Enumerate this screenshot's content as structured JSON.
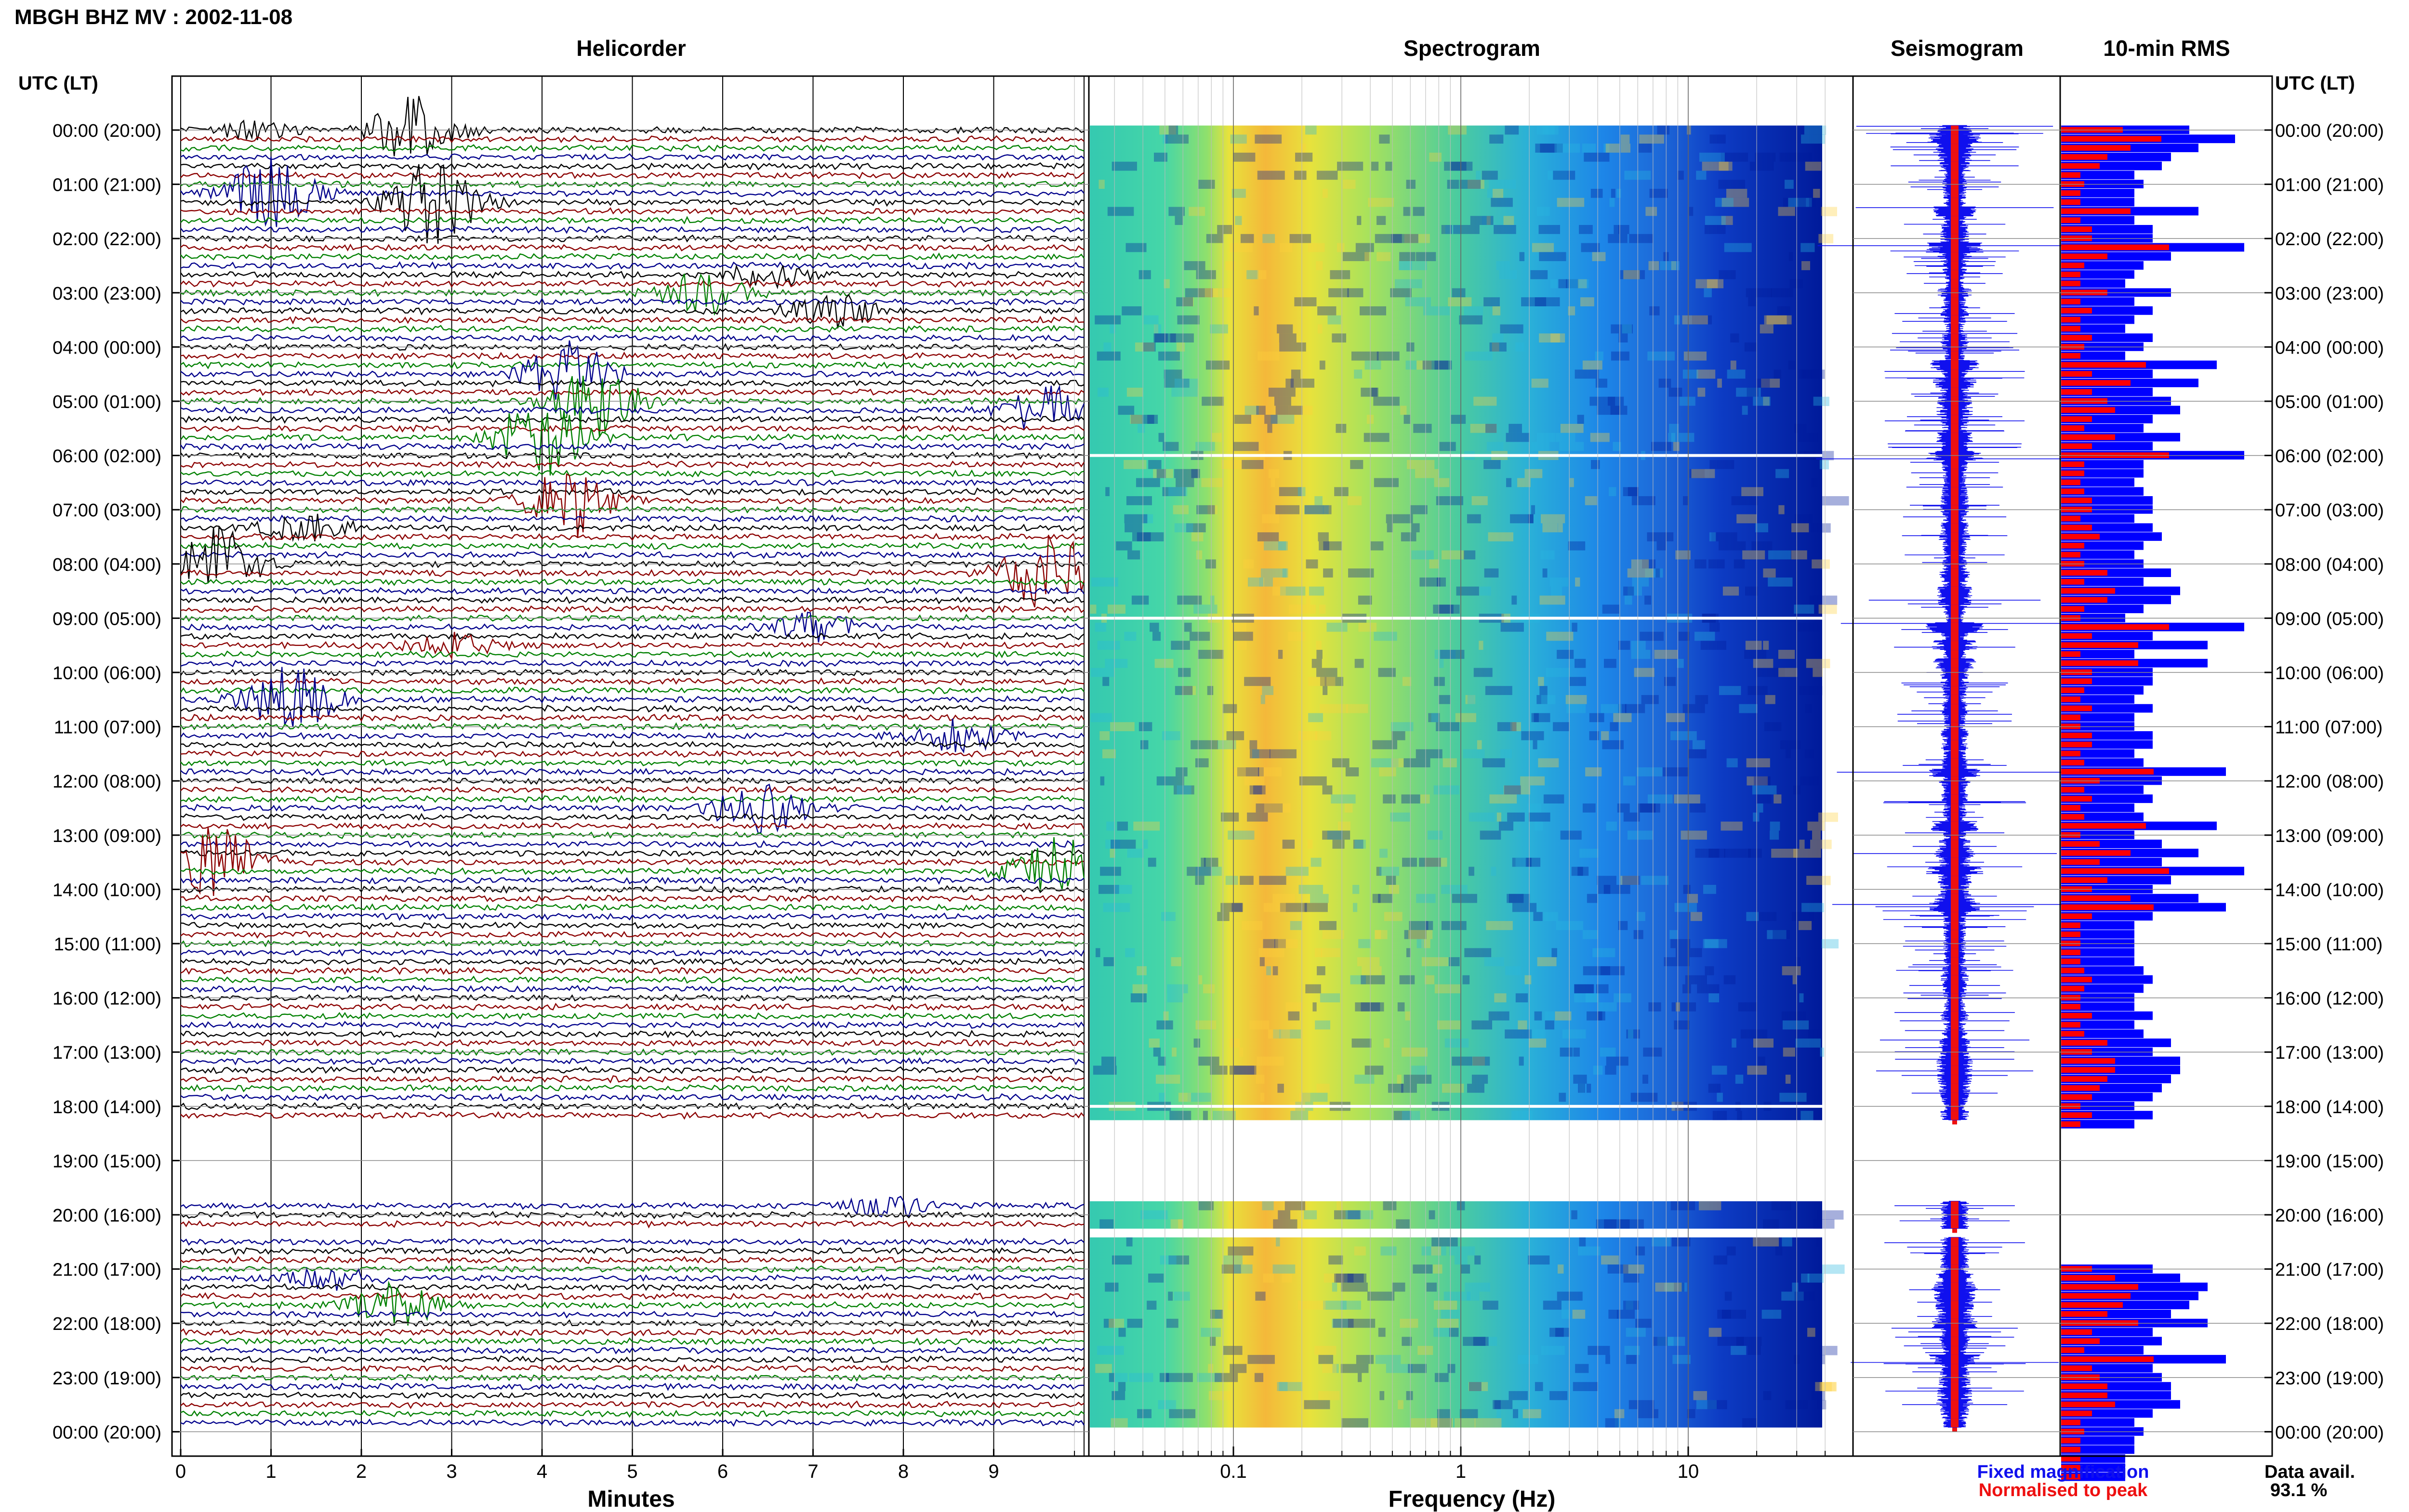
{
  "title": "MBGH BHZ MV : 2002-11-08",
  "panels": {
    "helicorder": "Helicorder",
    "spectrogram": "Spectrogram",
    "seismogram": "Seismogram",
    "rms": "10-min RMS"
  },
  "axis_header": "UTC (LT)",
  "time_labels": [
    "00:00 (20:00)",
    "01:00 (21:00)",
    "02:00 (22:00)",
    "03:00 (23:00)",
    "04:00 (00:00)",
    "05:00 (01:00)",
    "06:00 (02:00)",
    "07:00 (03:00)",
    "08:00 (04:00)",
    "09:00 (05:00)",
    "10:00 (06:00)",
    "11:00 (07:00)",
    "12:00 (08:00)",
    "13:00 (09:00)",
    "14:00 (10:00)",
    "15:00 (11:00)",
    "16:00 (12:00)",
    "17:00 (13:00)",
    "18:00 (14:00)",
    "19:00 (15:00)",
    "20:00 (16:00)",
    "21:00 (17:00)",
    "22:00 (18:00)",
    "23:00 (19:00)",
    "00:00 (20:00)"
  ],
  "xaxes": {
    "minutes_label": "Minutes",
    "minutes_ticks": [
      "0",
      "1",
      "2",
      "3",
      "4",
      "5",
      "6",
      "7",
      "8",
      "9"
    ],
    "frequency_label": "Frequency (Hz)",
    "frequency_ticks": [
      "0.1",
      "1",
      "10"
    ]
  },
  "legend": {
    "fixed": "Fixed magnification",
    "normalised": "Normalised to peak",
    "fixed_color": "#1010ee",
    "normalised_color": "#ee1010"
  },
  "availability": {
    "label": "Data avail.",
    "value": "93.1 %"
  },
  "colors": {
    "trace_cycle": [
      "#000000",
      "#8b0000",
      "#008000",
      "#00008b"
    ],
    "rms_blue": "#0000ff",
    "rms_red": "#ff0000"
  },
  "chart_data": {
    "type": "heatmap",
    "date": "2002-11-08",
    "station": "MBGH BHZ MV",
    "helicorder_minutes_per_line": 10,
    "spectrogram_frequency_range_hz": [
      0.02,
      40
    ],
    "spectrogram_peak_band_hz": [
      0.15,
      0.3
    ],
    "data_gap_utc": [
      "18:20",
      "19:40"
    ],
    "data_gap2_utc": [
      "20:20",
      "20:30"
    ],
    "spectrogram_white_rows_utc": [
      "06:00",
      "09:00",
      "18:00"
    ],
    "events_utc_minute": [
      {
        "hour": 0,
        "row": 0,
        "minute": 0.8,
        "amp": 0.6
      },
      {
        "hour": 0,
        "row": 0,
        "minute": 2.6,
        "amp": 2.4
      },
      {
        "hour": 1,
        "row": 1,
        "minute": 1.0,
        "amp": 2.5
      },
      {
        "hour": 1,
        "row": 2,
        "minute": 2.8,
        "amp": 3.0
      },
      {
        "hour": 2,
        "row": 4,
        "minute": 6.5,
        "amp": 0.8
      },
      {
        "hour": 3,
        "row": 0,
        "minute": 5.8,
        "amp": 1.6
      },
      {
        "hour": 3,
        "row": 2,
        "minute": 7.2,
        "amp": 1.2
      },
      {
        "hour": 4,
        "row": 3,
        "minute": 4.3,
        "amp": 2.2
      },
      {
        "hour": 5,
        "row": 0,
        "minute": 4.6,
        "amp": 2.5
      },
      {
        "hour": 5,
        "row": 1,
        "minute": 9.6,
        "amp": 1.6
      },
      {
        "hour": 5,
        "row": 4,
        "minute": 4.0,
        "amp": 2.8
      },
      {
        "hour": 6,
        "row": 5,
        "minute": 4.3,
        "amp": 2.6
      },
      {
        "hour": 7,
        "row": 2,
        "minute": 1.4,
        "amp": 0.9
      },
      {
        "hour": 8,
        "row": 0,
        "minute": 0.4,
        "amp": 2.5
      },
      {
        "hour": 8,
        "row": 1,
        "minute": 9.6,
        "amp": 2.8
      },
      {
        "hour": 9,
        "row": 1,
        "minute": 7.0,
        "amp": 1.0
      },
      {
        "hour": 9,
        "row": 3,
        "minute": 3.0,
        "amp": 0.8
      },
      {
        "hour": 10,
        "row": 3,
        "minute": 1.2,
        "amp": 2.4
      },
      {
        "hour": 11,
        "row": 1,
        "minute": 8.6,
        "amp": 1.2
      },
      {
        "hour": 12,
        "row": 3,
        "minute": 6.4,
        "amp": 2.0
      },
      {
        "hour": 13,
        "row": 3,
        "minute": 0.4,
        "amp": 2.4
      },
      {
        "hour": 13,
        "row": 4,
        "minute": 9.7,
        "amp": 2.6
      },
      {
        "hour": 19,
        "row": 5,
        "minute": 7.8,
        "amp": 0.7
      },
      {
        "hour": 21,
        "row": 1,
        "minute": 1.7,
        "amp": 0.8
      },
      {
        "hour": 21,
        "row": 4,
        "minute": 2.4,
        "amp": 1.6
      }
    ],
    "rms_10min": [
      [
        1.4,
        1.9,
        1.5,
        1.2,
        1.1,
        0.8
      ],
      [
        0.9,
        0.8,
        0.8,
        1.5,
        0.8,
        1.0
      ],
      [
        1.0,
        2.0,
        1.2,
        0.9,
        0.8,
        0.7
      ],
      [
        1.2,
        0.8,
        1.0,
        0.8,
        0.7,
        1.0
      ],
      [
        0.9,
        0.7,
        1.7,
        1.0,
        1.5,
        1.0
      ],
      [
        1.2,
        1.3,
        1.0,
        0.9,
        1.3,
        1.0
      ],
      [
        2.0,
        0.9,
        0.9,
        0.8,
        0.9,
        1.0
      ],
      [
        1.0,
        0.8,
        1.0,
        1.1,
        0.9,
        0.8
      ],
      [
        0.9,
        1.2,
        0.9,
        1.3,
        1.2,
        0.9
      ],
      [
        0.7,
        2.0,
        1.0,
        1.6,
        0.8,
        1.6
      ],
      [
        1.0,
        1.0,
        0.9,
        0.8,
        1.0,
        0.8
      ],
      [
        0.8,
        1.0,
        1.0,
        0.8,
        0.9,
        1.8
      ],
      [
        1.1,
        0.9,
        1.0,
        0.8,
        0.9,
        1.7
      ],
      [
        0.8,
        1.1,
        1.5,
        1.1,
        2.0,
        1.2
      ],
      [
        1.0,
        1.5,
        1.8,
        1.0,
        0.8,
        0.8
      ],
      [
        0.8,
        0.8,
        0.8,
        0.9,
        1.0,
        0.9
      ],
      [
        0.8,
        0.8,
        1.0,
        0.8,
        0.9,
        1.2
      ],
      [
        1.0,
        1.3,
        1.3,
        1.2,
        1.1,
        1.0
      ],
      [
        0.8,
        1.0,
        0.8,
        0,
        0,
        0
      ],
      [
        0,
        0,
        0,
        0,
        0,
        0
      ],
      [
        0,
        0,
        0,
        0,
        0,
        0
      ],
      [
        1.0,
        1.3,
        1.6,
        1.5,
        1.4,
        1.2
      ],
      [
        1.6,
        1.0,
        1.1,
        0.9,
        1.8,
        1.0
      ],
      [
        1.1,
        1.2,
        1.2,
        1.3,
        1.0,
        0.8
      ],
      [
        0.9,
        0.8,
        0.8,
        0.7,
        0.7,
        0.7
      ]
    ]
  }
}
